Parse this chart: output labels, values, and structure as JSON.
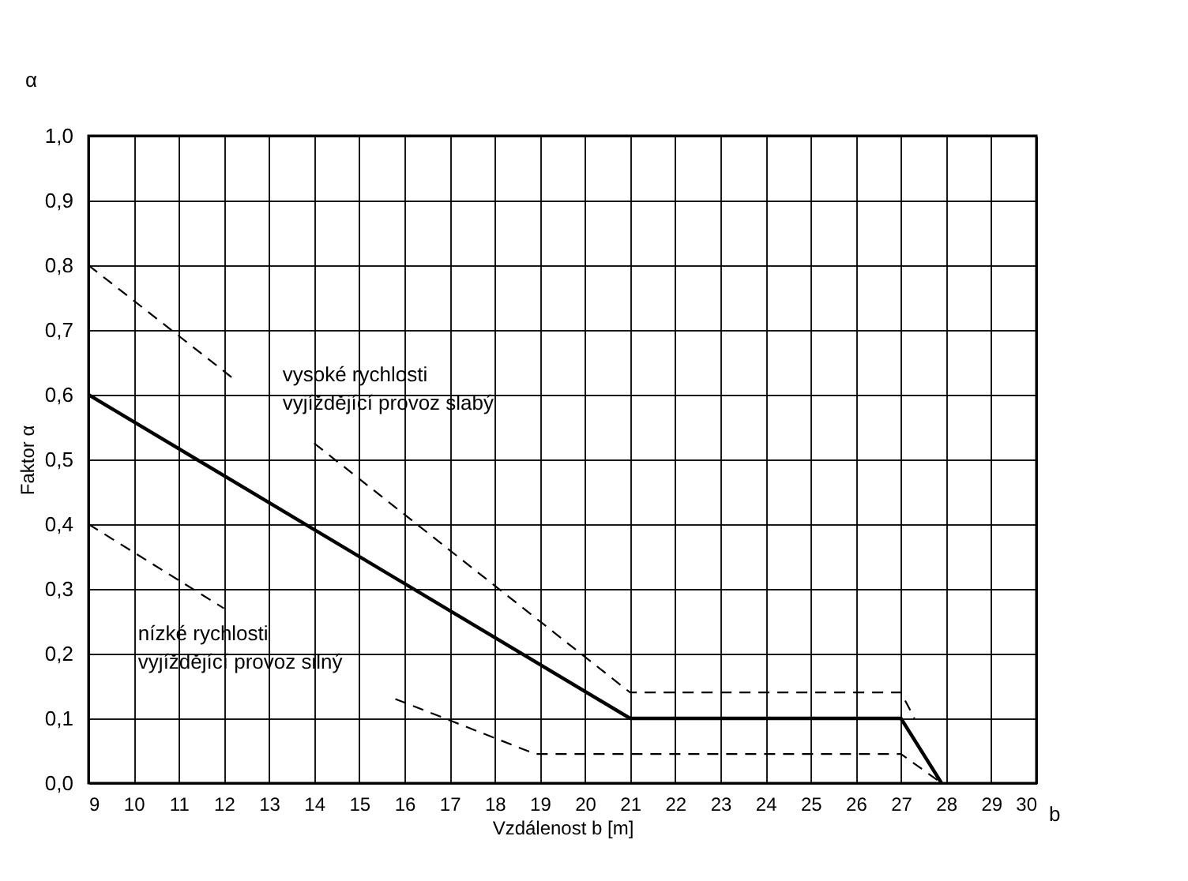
{
  "chart_data": {
    "type": "line",
    "xlabel": "Vzdálenost b  [m]",
    "ylabel": "Faktor α",
    "annotations": [
      "α",
      "b",
      "vysoké rychlosti\nvyjíždějící provoz slabý",
      "nízké rychlosti\nvyjíždějící provoz silný"
    ],
    "series": [
      {
        "color": "#000000",
        "line_style": "solid",
        "x": [
          9,
          21,
          27,
          27.9
        ],
        "values": [
          0.6,
          0.1,
          0.1,
          0.0
        ]
      },
      {
        "color": "#000000",
        "line_style": "dashed",
        "x": [
          9,
          12.3,
          null,
          14,
          21,
          27,
          27.3
        ],
        "values": [
          0.8,
          0.62,
          null,
          0.525,
          0.14,
          0.14,
          0.1
        ]
      },
      {
        "color": "#000000",
        "line_style": "dashed",
        "x": [
          9,
          12.0,
          null,
          15.8,
          18.9,
          27,
          27.9
        ],
        "values": [
          0.4,
          0.27,
          null,
          0.13,
          0.045,
          0.045,
          0.0
        ]
      }
    ],
    "xlim": [
      9,
      30
    ],
    "xticks": [
      9,
      10,
      11,
      12,
      13,
      14,
      15,
      16,
      17,
      18,
      19,
      20,
      21,
      22,
      23,
      24,
      25,
      26,
      27,
      28,
      29,
      30
    ],
    "ylim": [
      0,
      1.0
    ],
    "yticks": [
      {
        "value": 0,
        "label": "0,0"
      },
      {
        "value": 0.1,
        "label": "0,1"
      },
      {
        "value": 0.2,
        "label": "0,2"
      },
      {
        "value": 0.3,
        "label": "0,3"
      },
      {
        "value": 0.4,
        "label": "0,4"
      },
      {
        "value": 0.5,
        "label": "0,5"
      },
      {
        "value": 0.6,
        "label": "0,6"
      },
      {
        "value": 0.7,
        "label": "0,7"
      },
      {
        "value": 0.8,
        "label": "0,8"
      },
      {
        "value": 0.9,
        "label": "0,9"
      },
      {
        "value": 1.0,
        "label": "1,0"
      }
    ],
    "grid": true
  }
}
